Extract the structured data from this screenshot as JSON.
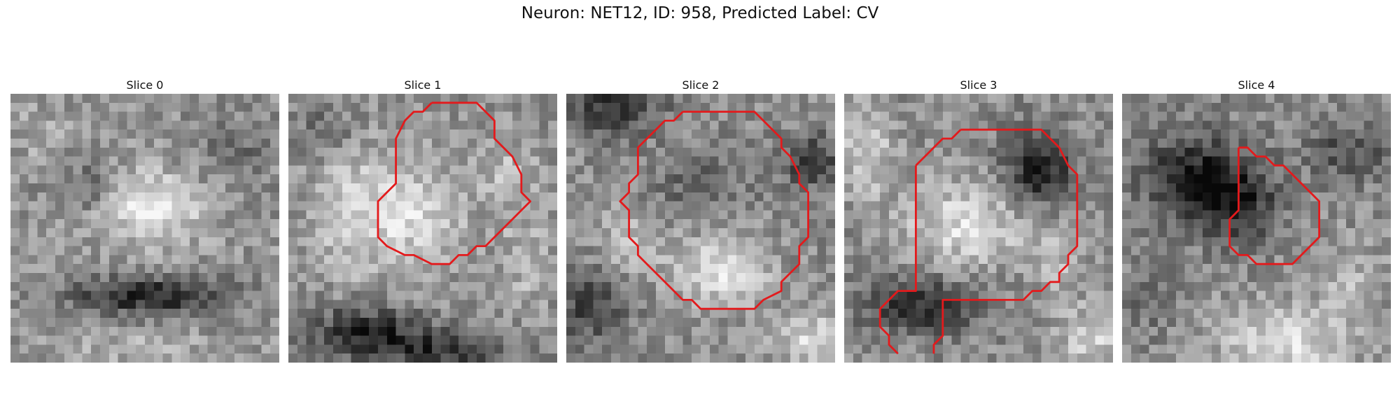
{
  "figure": {
    "title": "Neuron: NET12, ID: 958, Predicted Label: CV"
  },
  "panels": [
    {
      "title": "Slice 0"
    },
    {
      "title": "Slice 1"
    },
    {
      "title": "Slice 2"
    },
    {
      "title": "Slice 3"
    },
    {
      "title": "Slice 4"
    }
  ],
  "colors": {
    "outline": "#e31a1c",
    "background": "#ffffff"
  }
}
